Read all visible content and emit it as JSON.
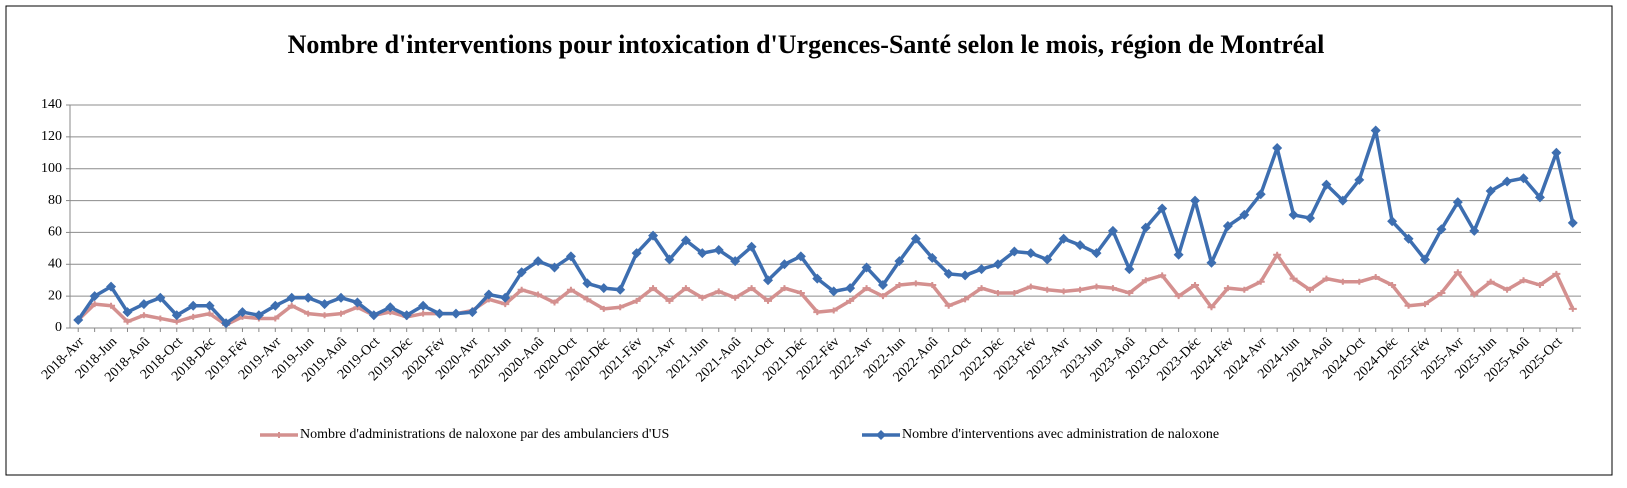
{
  "chart_data": {
    "type": "line",
    "title": "Nombre d'interventions pour intoxication d'Urgences-Santé selon le mois, région de Montréal",
    "categories": [
      "2018-Avr",
      null,
      "2018-Jun",
      null,
      "2018-Aoû",
      null,
      "2018-Oct",
      null,
      "2018-Déc",
      null,
      "2019-Fév",
      null,
      "2019-Avr",
      null,
      "2019-Jun",
      null,
      "2019-Aoû",
      null,
      "2019-Oct",
      null,
      "2019-Déc",
      null,
      "2020-Fév",
      null,
      "2020-Avr",
      null,
      "2020-Jun",
      null,
      "2020-Aoû",
      null,
      "2020-Oct",
      null,
      "2020-Déc",
      null,
      "2021-Fév",
      null,
      "2021-Avr",
      null,
      "2021-Jun",
      null,
      "2021-Aoû",
      null,
      "2021-Oct",
      null,
      "2021-Déc",
      null,
      "2022-Fév",
      null,
      "2022-Avr",
      null,
      "2022-Jun",
      null,
      "2022-Aoû",
      null,
      "2022-Oct",
      null,
      "2022-Déc",
      null,
      "2023-Fév",
      null,
      "2023-Avr",
      null,
      "2023-Jun",
      null,
      "2023-Aoû",
      null,
      "2023-Oct",
      null,
      "2023-Déc",
      null,
      "2024-Fév",
      null,
      "2024-Avr",
      null,
      "2024-Jun",
      null,
      "2024-Aoû",
      null,
      "2024-Oct",
      null,
      "2024-Déc",
      null,
      "2025-Fév",
      null,
      "2025-Avr",
      null,
      "2025-Jun",
      null,
      "2025-Aoû",
      null,
      "2025-Oct",
      null
    ],
    "series": [
      {
        "name": "Nombre d'administrations de naloxone par des ambulanciers d'US",
        "color": "#d4908f",
        "marker": "plus",
        "values": [
          5,
          15,
          14,
          4,
          8,
          6,
          4,
          7,
          9,
          2,
          7,
          6,
          6,
          14,
          9,
          8,
          9,
          13,
          8,
          10,
          7,
          9,
          9,
          9,
          11,
          18,
          15,
          24,
          21,
          16,
          24,
          18,
          12,
          13,
          17,
          25,
          17,
          25,
          19,
          23,
          19,
          25,
          17,
          25,
          22,
          10,
          11,
          17,
          25,
          20,
          27,
          28,
          27,
          14,
          18,
          25,
          22,
          22,
          26,
          24,
          23,
          24,
          26,
          25,
          22,
          30,
          33,
          20,
          27,
          13,
          25,
          24,
          29,
          46,
          31,
          24,
          31,
          29,
          29,
          32,
          27,
          14,
          15,
          22,
          35,
          21,
          29,
          24,
          30,
          27,
          34,
          12
        ]
      },
      {
        "name": "Nombre d'interventions avec administration de naloxone",
        "color": "#3d6eb0",
        "marker": "diamond",
        "values": [
          5,
          20,
          26,
          10,
          15,
          19,
          8,
          14,
          14,
          3,
          10,
          8,
          14,
          19,
          19,
          15,
          19,
          16,
          8,
          13,
          8,
          14,
          9,
          9,
          10,
          21,
          19,
          35,
          42,
          38,
          45,
          28,
          25,
          24,
          47,
          58,
          43,
          55,
          47,
          49,
          42,
          51,
          30,
          40,
          45,
          31,
          23,
          25,
          38,
          27,
          42,
          56,
          44,
          34,
          33,
          37,
          40,
          48,
          47,
          43,
          56,
          52,
          47,
          61,
          37,
          63,
          75,
          46,
          80,
          41,
          64,
          71,
          84,
          113,
          71,
          69,
          90,
          80,
          93,
          124,
          67,
          56,
          43,
          62,
          79,
          61,
          86,
          92,
          94,
          82,
          110,
          66
        ]
      }
    ],
    "ylim": [
      0,
      140
    ],
    "yticks": [
      0,
      20,
      40,
      60,
      80,
      100,
      120,
      140
    ],
    "grid": true,
    "legend": "bottom"
  }
}
